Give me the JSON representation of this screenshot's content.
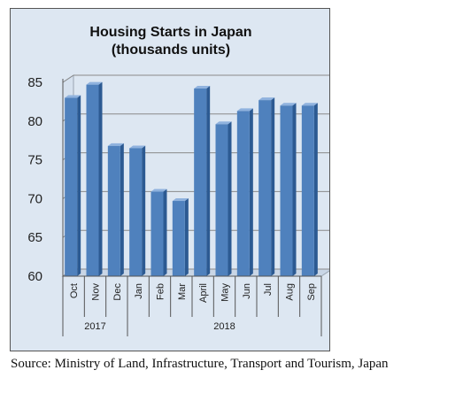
{
  "chart_data": {
    "type": "bar",
    "title": "Housing Starts in Japan",
    "subtitle": "(thousands units)",
    "xlabel": "",
    "ylabel": "",
    "ylim": [
      60,
      85
    ],
    "yticks": [
      60,
      65,
      70,
      75,
      80,
      85
    ],
    "grid": true,
    "legend": "none",
    "categories": [
      "Oct",
      "Nov",
      "Dec",
      "Jan",
      "Feb",
      "Mar",
      "April",
      "May",
      "Jun",
      "Jul",
      "Aug",
      "Sep"
    ],
    "groups": [
      {
        "label": "2017",
        "count": 3
      },
      {
        "label": "2018",
        "count": 9
      }
    ],
    "values": [
      83.0,
      84.7,
      76.8,
      76.5,
      70.9,
      69.7,
      84.2,
      79.6,
      81.3,
      82.7,
      82.0,
      82.0
    ],
    "colors": {
      "bar": "#4f81bd",
      "bar_side": "#2c5a92",
      "bar_top": "#8fb2de",
      "background": "#dde7f2"
    }
  },
  "source": "Source: Ministry of Land, Infrastructure, Transport and Tourism, Japan"
}
